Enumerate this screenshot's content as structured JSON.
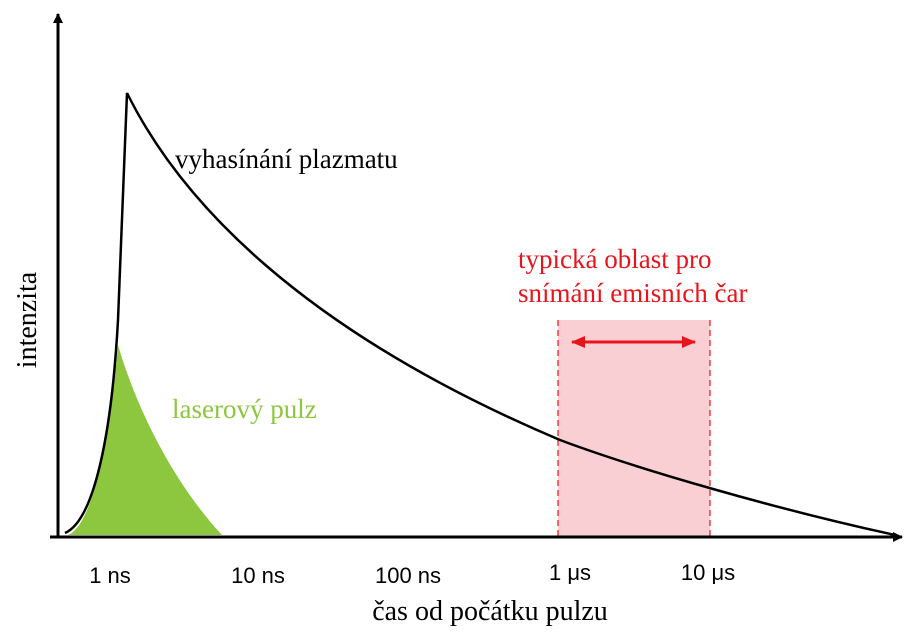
{
  "axes": {
    "y_label": "intenzita",
    "x_label": "čas od počátku pulzu",
    "x_ticks": [
      "1 ns",
      "10 ns",
      "100 ns",
      "1 μs",
      "10 μs"
    ]
  },
  "annotations": {
    "plasma": "vyhasínání plazmatu",
    "laser": "laserový pulz",
    "region": [
      "typická oblast pro",
      "snímání emisních čar"
    ]
  }
}
